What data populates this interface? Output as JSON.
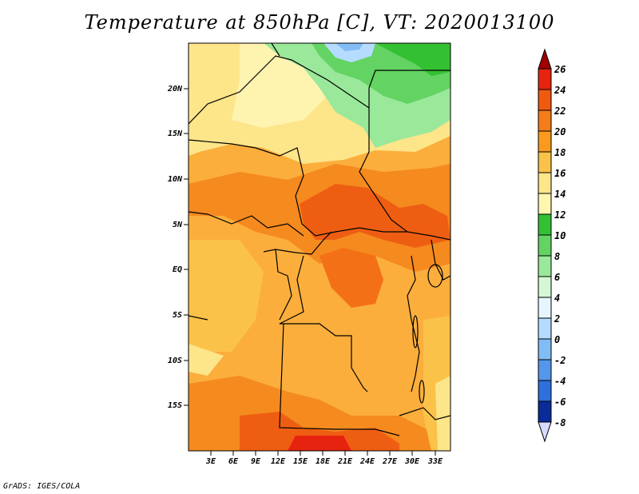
{
  "title": "Temperature at 850hPa [C], VT: 2020013100",
  "credit": "GrADS: IGES/COLA",
  "map": {
    "lat_ticks": [
      "20N",
      "15N",
      "10N",
      "5N",
      "EQ",
      "5S",
      "10S",
      "15S"
    ],
    "lon_ticks": [
      "3E",
      "6E",
      "9E",
      "12E",
      "15E",
      "18E",
      "21E",
      "24E",
      "27E",
      "30E",
      "33E"
    ]
  },
  "colorbar": {
    "levels": [
      "26",
      "24",
      "22",
      "20",
      "18",
      "16",
      "14",
      "12",
      "10",
      "8",
      "6",
      "4",
      "2",
      "0",
      "-2",
      "-4",
      "-6",
      "-8"
    ],
    "colors": [
      "#a00000",
      "#e6230f",
      "#f05a0f",
      "#f57d19",
      "#fa9b1e",
      "#fbc24a",
      "#fde68a",
      "#fff6b0",
      "#33c033",
      "#63d363",
      "#9ae89a",
      "#d5f7d5",
      "#e6f6ff",
      "#b5dcff",
      "#82bcf5",
      "#5497ea",
      "#2e6fdd",
      "#1547c0",
      "#0a2c98",
      "#d8dcff"
    ]
  }
}
